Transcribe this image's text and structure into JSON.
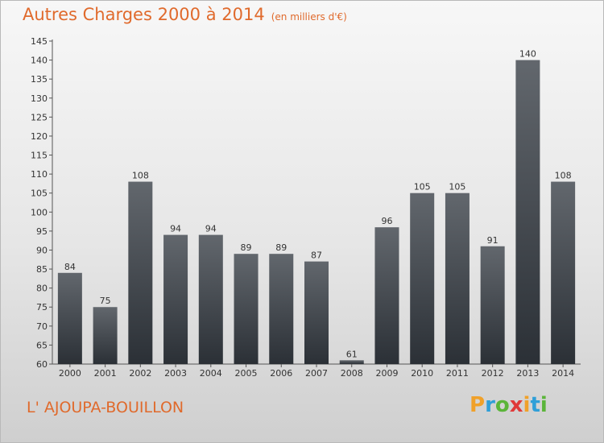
{
  "header": {
    "title": "Autres Charges 2000 à 2014",
    "unit": "(en milliers d'€)"
  },
  "commune": "L' AJOUPA-BOUILLON",
  "logo": {
    "letters": [
      "P",
      "r",
      "o",
      "x",
      "i",
      "t",
      "i"
    ],
    "colors": [
      "#f0a12a",
      "#2f9fd8",
      "#5bb53a",
      "#e03a3a",
      "#f0a12a",
      "#2f9fd8",
      "#5bb53a"
    ]
  },
  "colors": {
    "title": "#e06a2c",
    "bar_top": "#62676d",
    "bar_bottom": "#2b3036"
  },
  "chart_data": {
    "type": "bar",
    "title": "Autres Charges 2000 à 2014",
    "subtitle": "(en milliers d'€)",
    "categories": [
      "2000",
      "2001",
      "2002",
      "2003",
      "2004",
      "2005",
      "2006",
      "2007",
      "2008",
      "2009",
      "2010",
      "2011",
      "2012",
      "2013",
      "2014"
    ],
    "values": [
      84,
      75,
      108,
      94,
      94,
      89,
      89,
      87,
      61,
      96,
      105,
      105,
      91,
      140,
      108
    ],
    "ylim": [
      60,
      145
    ],
    "yticks": [
      60,
      65,
      70,
      75,
      80,
      85,
      90,
      95,
      100,
      105,
      110,
      115,
      120,
      125,
      130,
      135,
      140,
      145
    ],
    "grid": false,
    "xlabel": "",
    "ylabel": ""
  }
}
